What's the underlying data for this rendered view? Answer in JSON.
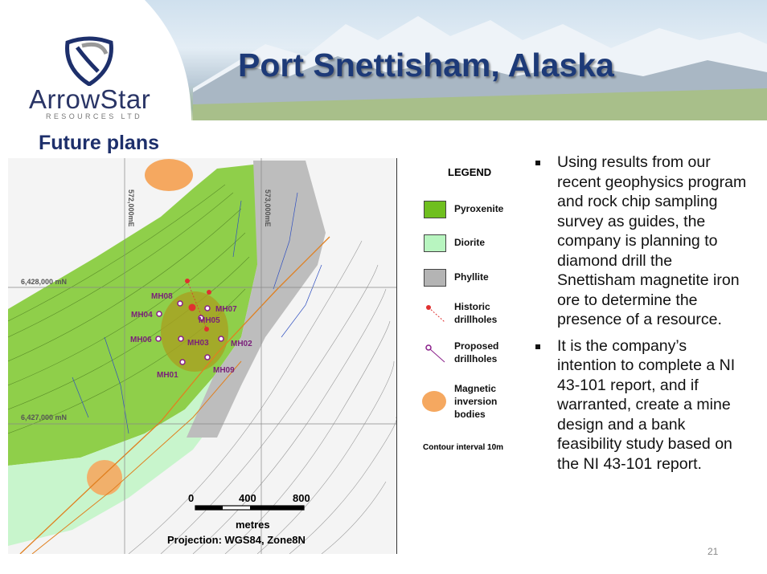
{
  "header": {
    "title": "Port Snettisham, Alaska"
  },
  "logo": {
    "name": "ArrowStar",
    "subtitle": "RESOURCES LTD"
  },
  "section_title": "Future plans",
  "map": {
    "grid_labels": {
      "easting_1": "572,000mE",
      "easting_2": "573,000mE",
      "northing_1": "6,428,000 mN",
      "northing_2": "6,427,000 mN"
    },
    "drillholes": [
      "MH08",
      "MH07",
      "MH04",
      "MH05",
      "MH06",
      "MH03",
      "MH02",
      "MH01",
      "MH09"
    ],
    "scale": {
      "tick_0": "0",
      "tick_1": "400",
      "tick_2": "800",
      "units": "metres"
    },
    "projection": "Projection:  WGS84, Zone8N"
  },
  "legend": {
    "title": "LEGEND",
    "items": [
      {
        "label": "Pyroxenite",
        "color": "#6fbf1f"
      },
      {
        "label": "Diorite",
        "color": "#b8f5c0"
      },
      {
        "label": "Phyllite",
        "color": "#b4b4b4"
      },
      {
        "label": "Historic drillholes",
        "color": "#e03030"
      },
      {
        "label": "Proposed drillholes",
        "color": "#8a1f8a"
      },
      {
        "label": "Magnetic inversion bodies",
        "color": "#f5a860"
      }
    ],
    "note": "Contour interval 10m"
  },
  "bullets": [
    "Using results from our recent geophysics program and rock chip sampling survey as guides, the company is planning to diamond drill the Snettisham magnetite iron ore to determine the presence of a resource.",
    "It is the company’s intention to complete a NI 43-101 report, and if warranted, create a mine design and a bank feasibility study based on the NI 43-101 report."
  ],
  "page_number": "21",
  "colors": {
    "title": "#1d3a78",
    "drillhole_label": "#7a1f7a"
  }
}
